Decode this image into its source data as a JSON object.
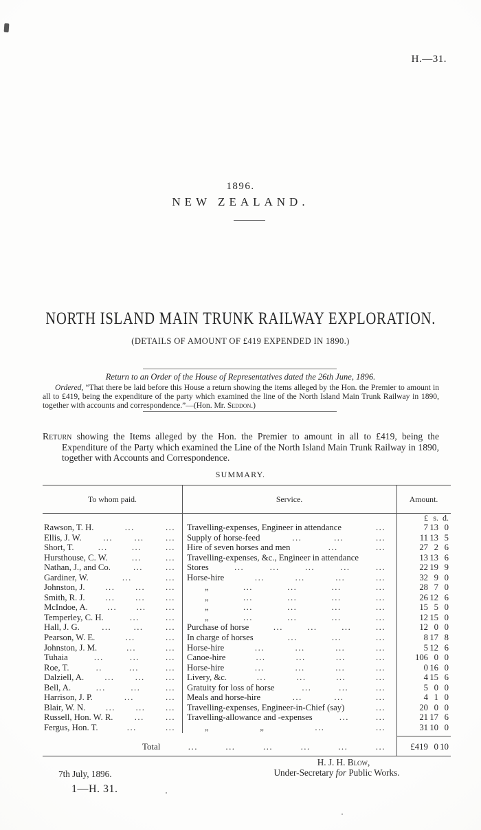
{
  "page": {
    "doc_ref": "H.—31.",
    "year": "1896.",
    "country": "NEW ZEALAND.",
    "title": "NORTH ISLAND MAIN TRUNK RAILWAY EXPLORATION.",
    "subtitle": "(DETAILS OF AMOUNT OF £419 EXPENDED IN 1890.)"
  },
  "order": {
    "return_line": "Return to an Order of the House of Representatives dated the 26th June, 1896.",
    "ordered_lead": "Ordered,",
    "ordered_body": " “That there be laid before this House a return showing the items alleged by the Hon. the Premier to amount in all to £419, being the expenditure of the party which examined the line of the North Island Main Trunk Railway in 1890, together with accounts and correspondence.”—(Hon. Mr. ",
    "ordered_name": "Seddon",
    "ordered_tail": ".)"
  },
  "return_para": {
    "lead": "Return",
    "body": " showing the Items alleged by the Hon. the Premier to amount in all to £419, being the Expenditure of the Party which examined the Line of the North Island Main Trunk Railway in 1890, together with Accounts and Correspondence."
  },
  "summary_heading": "SUMMARY.",
  "table": {
    "headers": {
      "to_whom": "To whom paid.",
      "service": "Service.",
      "amount": "Amount."
    },
    "currency_header": [
      "£",
      "s.",
      "d."
    ],
    "rows": [
      {
        "name": "Rawson, T. H.",
        "nl": [
          "...",
          "..."
        ],
        "service": "Travelling-expenses, Engineer in attendance",
        "sl": [
          "..."
        ],
        "amt": [
          "7",
          "13",
          "0"
        ]
      },
      {
        "name": "Ellis, J. W.",
        "nl": [
          "...",
          "...",
          "..."
        ],
        "service": "Supply of horse-feed",
        "sl": [
          "...",
          "...",
          "..."
        ],
        "amt": [
          "11",
          "13",
          "5"
        ]
      },
      {
        "name": "Short, T.",
        "nl": [
          "...",
          "...",
          "..."
        ],
        "service": "Hire of seven horses and men",
        "sl": [
          "...",
          "..."
        ],
        "amt": [
          "27",
          "2",
          "6"
        ]
      },
      {
        "name": "Hursthouse, C. W.",
        "nl": [
          "...",
          "..."
        ],
        "service": "Travelling-expenses, &c., Engineer in attendance",
        "sl": [],
        "amt": [
          "13",
          "13",
          "6"
        ]
      },
      {
        "name": "Nathan, J., and Co.",
        "nl": [
          "...",
          "..."
        ],
        "service": "Stores",
        "sl": [
          "...",
          "...",
          "...",
          "...",
          "..."
        ],
        "amt": [
          "22",
          "19",
          "9"
        ]
      },
      {
        "name": "Gardiner, W.",
        "nl": [
          "...",
          "..."
        ],
        "service": "Horse-hire",
        "sl": [
          "...",
          "...",
          "...",
          "..."
        ],
        "amt": [
          "32",
          "9",
          "0"
        ]
      },
      {
        "name": "Johnston, J.",
        "nl": [
          "...",
          "...",
          "..."
        ],
        "service": "„",
        "sl": [
          "...",
          "...",
          "...",
          "..."
        ],
        "amt": [
          "28",
          "7",
          "0"
        ]
      },
      {
        "name": "Smith, R. J.",
        "nl": [
          "...",
          "...",
          "..."
        ],
        "service": "„",
        "sl": [
          "...",
          "...",
          "...",
          "..."
        ],
        "amt": [
          "26",
          "12",
          "6"
        ]
      },
      {
        "name": "McIndoe, A.",
        "nl": [
          "...",
          "...",
          "..."
        ],
        "service": "„",
        "sl": [
          "...",
          "...",
          "...",
          "..."
        ],
        "amt": [
          "15",
          "5",
          "0"
        ]
      },
      {
        "name": "Temperley, C. H.",
        "nl": [
          "...",
          "..."
        ],
        "service": "„",
        "sl": [
          "...",
          "...",
          "...",
          "..."
        ],
        "amt": [
          "12",
          "15",
          "0"
        ]
      },
      {
        "name": "Hall, J. G.",
        "nl": [
          "...",
          "...",
          "..."
        ],
        "service": "Purchase of horse",
        "sl": [
          "...",
          "...",
          "...",
          "..."
        ],
        "amt": [
          "12",
          "0",
          "0"
        ]
      },
      {
        "name": "Pearson, W. E.",
        "nl": [
          "...",
          "..."
        ],
        "service": "In charge of horses",
        "sl": [
          "...",
          "...",
          "..."
        ],
        "amt": [
          "8",
          "17",
          "8"
        ]
      },
      {
        "name": "Johnston, J. M.",
        "nl": [
          "...",
          "..."
        ],
        "service": "Horse-hire",
        "sl": [
          "...",
          "...",
          "...",
          "..."
        ],
        "amt": [
          "5",
          "12",
          "6"
        ]
      },
      {
        "name": "Tuhaia",
        "nl": [
          "...",
          "...",
          "..."
        ],
        "service": "Canoe-hire",
        "sl": [
          "...",
          "...",
          "...",
          "..."
        ],
        "amt": [
          "106",
          "0",
          "0"
        ]
      },
      {
        "name": "Roe, T.",
        "nl": [
          "..",
          "...",
          "..."
        ],
        "service": "Horse-hire",
        "sl": [
          "...",
          "...",
          "...",
          "..."
        ],
        "amt": [
          "0",
          "16",
          "0"
        ]
      },
      {
        "name": "Dalziell, A.",
        "nl": [
          "...",
          "...",
          "..."
        ],
        "service": "Livery, &c.",
        "sl": [
          "...",
          "...",
          "...",
          "..."
        ],
        "amt": [
          "4",
          "15",
          "6"
        ]
      },
      {
        "name": "Bell, A.",
        "nl": [
          "...",
          "...",
          "..."
        ],
        "service": "Gratuity for loss of horse",
        "sl": [
          "...",
          "...",
          "..."
        ],
        "amt": [
          "5",
          "0",
          "0"
        ]
      },
      {
        "name": "Harrison, J. P.",
        "nl": [
          "...",
          "..."
        ],
        "service": "Meals and horse-hire",
        "sl": [
          "...",
          "...",
          "..."
        ],
        "amt": [
          "4",
          "1",
          "0"
        ]
      },
      {
        "name": "Blair, W. N.",
        "nl": [
          "...",
          "...",
          "..."
        ],
        "service": "Travelling-expenses, Engineer-in-Chief (say)",
        "sl": [
          "..."
        ],
        "amt": [
          "20",
          "0",
          "0"
        ]
      },
      {
        "name": "Russell, Hon. W. R.",
        "nl": [
          "...",
          "..."
        ],
        "service": "Travelling-allowance and -expenses",
        "sl": [
          "...",
          "..."
        ],
        "amt": [
          "21",
          "17",
          "6"
        ]
      },
      {
        "name": "Fergus, Hon. T.",
        "nl": [
          "...",
          "..."
        ],
        "service": "„",
        "sl": [
          "„",
          "...",
          "..."
        ],
        "amt": [
          "31",
          "10",
          "0"
        ]
      }
    ],
    "total": {
      "label": "Total",
      "dots": [
        "...",
        "...",
        "...",
        "...",
        "...",
        "..."
      ],
      "amt": [
        "£419",
        "0",
        "10"
      ]
    }
  },
  "footer": {
    "signature_pre": "H. J. H. ",
    "signature_surname": "Blow,",
    "signature_title_pre": "Under-Secretary ",
    "signature_title_italic": "for",
    "signature_title_post": " Public Works.",
    "date": "7th July, 1896.",
    "imprint": "1—H. 31."
  }
}
